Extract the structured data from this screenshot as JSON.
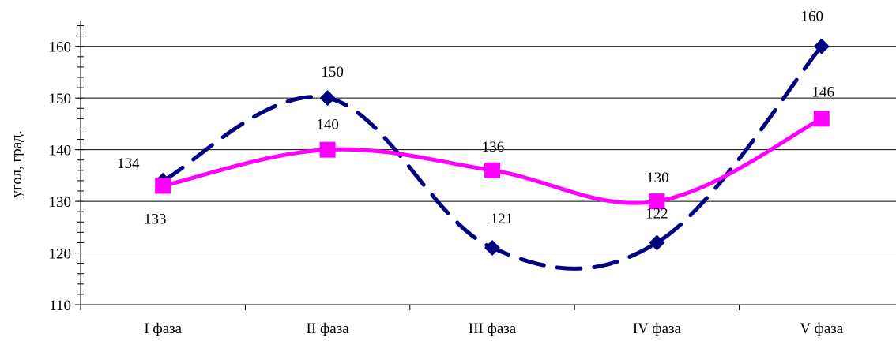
{
  "chart_data": {
    "type": "line",
    "title": "",
    "xlabel": "",
    "ylabel": "угол, град.",
    "categories": [
      "I фаза",
      "II фаза",
      "III фаза",
      "IV фаза",
      "V фаза"
    ],
    "ylim": [
      110,
      165
    ],
    "yticks": [
      110,
      120,
      130,
      140,
      150,
      160
    ],
    "minor_tick_step": 2,
    "grid": true,
    "legend": "none",
    "series": [
      {
        "values": [
          134,
          150,
          121,
          122,
          160
        ],
        "line_style": "dashed",
        "marker": "diamond",
        "smooth": true,
        "color": "#000080"
      },
      {
        "values": [
          133,
          140,
          136,
          130,
          146
        ],
        "line_style": "solid",
        "marker": "square",
        "smooth": true,
        "color": "#FF00FF"
      }
    ]
  }
}
